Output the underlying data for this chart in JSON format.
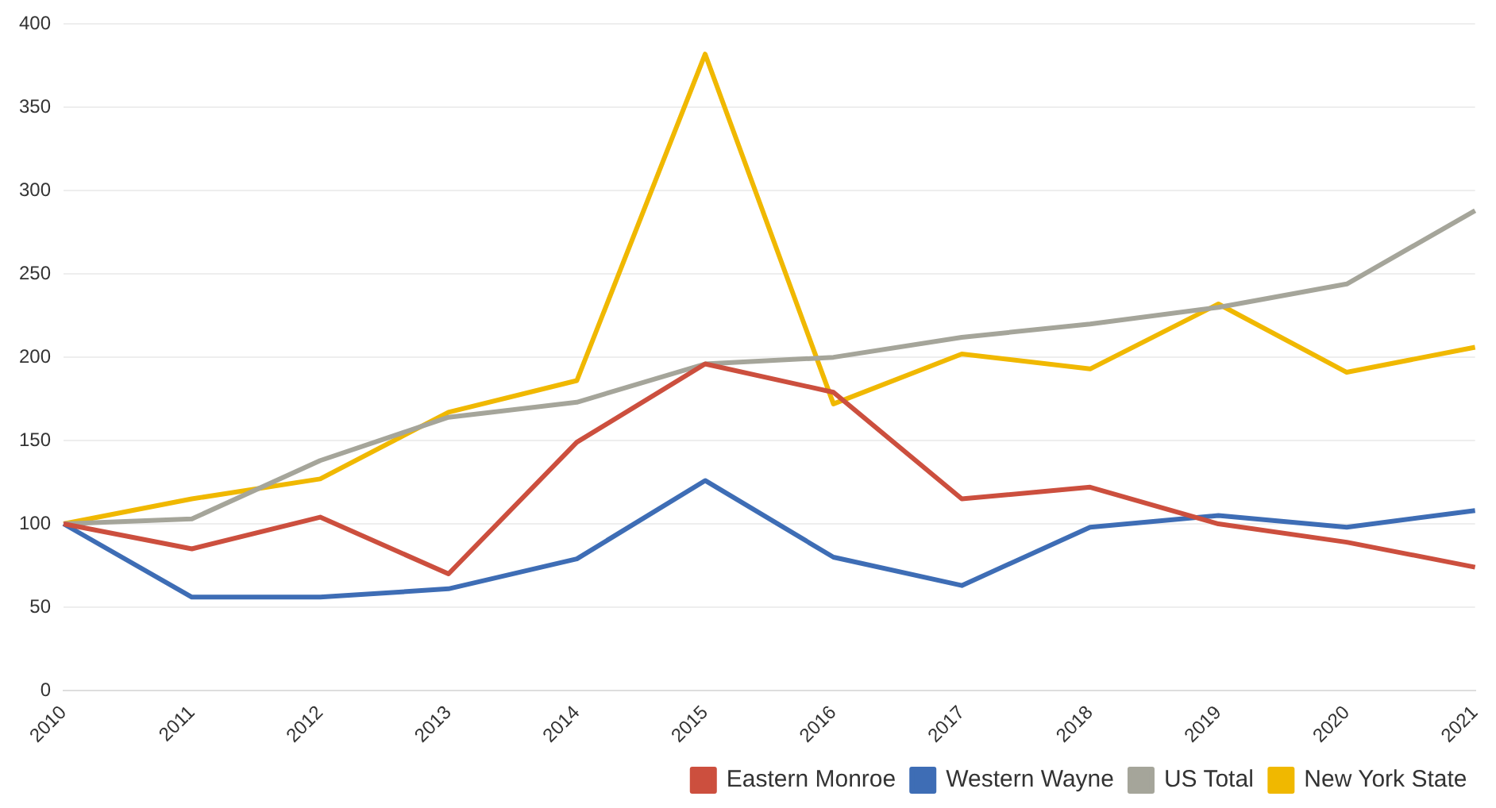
{
  "chart_data": {
    "type": "line",
    "categories": [
      "2010",
      "2011",
      "2012",
      "2013",
      "2014",
      "2015",
      "2016",
      "2017",
      "2018",
      "2019",
      "2020",
      "2021"
    ],
    "series": [
      {
        "name": "Eastern Monroe",
        "color": "#cc4f3e",
        "values": [
          100,
          85,
          104,
          70,
          149,
          196,
          179,
          115,
          122,
          100,
          89,
          74
        ]
      },
      {
        "name": "Western Wayne",
        "color": "#3e6db5",
        "values": [
          100,
          56,
          56,
          61,
          79,
          126,
          80,
          63,
          98,
          105,
          98,
          108
        ]
      },
      {
        "name": "US Total",
        "color": "#a5a59a",
        "values": [
          100,
          103,
          138,
          164,
          173,
          196,
          200,
          212,
          220,
          230,
          244,
          288
        ]
      },
      {
        "name": "New York State",
        "color": "#f0b800",
        "values": [
          100,
          115,
          127,
          167,
          186,
          382,
          172,
          202,
          193,
          232,
          191,
          206
        ]
      }
    ],
    "ylim": [
      0,
      400
    ],
    "yticks": [
      0,
      50,
      100,
      150,
      200,
      250,
      300,
      350,
      400
    ],
    "grid": "y",
    "legend": "bottom right",
    "marker": "none",
    "line_style": "solid"
  }
}
